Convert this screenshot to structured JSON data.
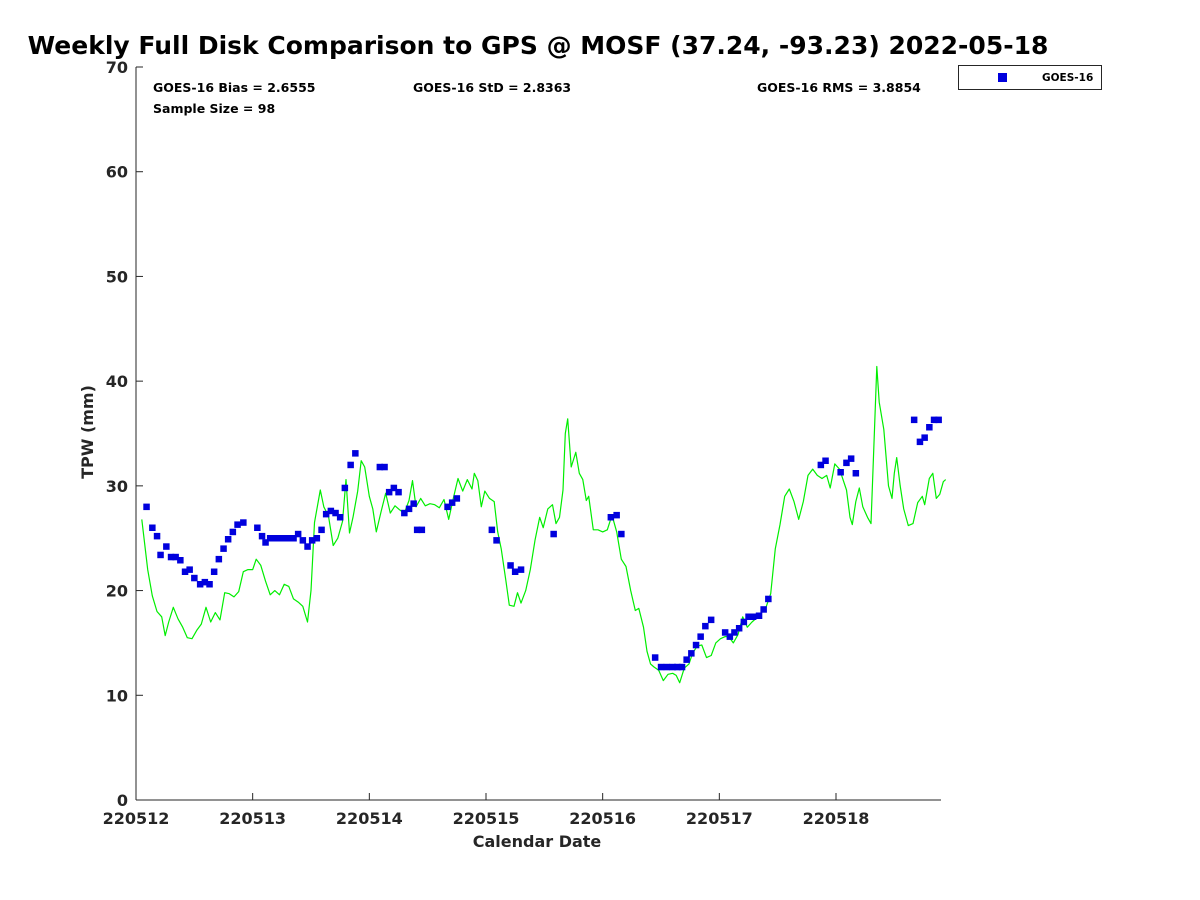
{
  "chart_data": {
    "type": "scatter",
    "title": "Weekly Full Disk Comparison to GPS @ MOSF (37.24, -93.23) 2022-05-18",
    "xlabel": "Calendar Date",
    "ylabel": "TPW (mm)",
    "xlim": [
      0,
      6.9
    ],
    "ylim": [
      0,
      70
    ],
    "x_ticks": [
      0,
      1,
      2,
      3,
      4,
      5,
      6
    ],
    "x_tick_labels": [
      "220512",
      "220513",
      "220514",
      "220515",
      "220516",
      "220517",
      "220518"
    ],
    "y_ticks": [
      0,
      10,
      20,
      30,
      40,
      50,
      60,
      70
    ],
    "y_tick_labels": [
      "0",
      "10",
      "20",
      "30",
      "40",
      "50",
      "60",
      "70"
    ],
    "legend": {
      "position": "top-right outside",
      "entries": [
        "GOES-16"
      ]
    },
    "stats": {
      "bias": "GOES-16 Bias = 2.6555",
      "std": "GOES-16 StD = 2.8363",
      "rms": "GOES-16 RMS = 3.8854",
      "sample_size": "Sample Size = 98"
    },
    "series": [
      {
        "name": "GOES-16",
        "kind": "scatter",
        "color": "#0000dd",
        "points": [
          [
            0.09,
            28.0
          ],
          [
            0.14,
            26.0
          ],
          [
            0.18,
            25.2
          ],
          [
            0.21,
            23.4
          ],
          [
            0.26,
            24.2
          ],
          [
            0.3,
            23.2
          ],
          [
            0.34,
            23.2
          ],
          [
            0.38,
            22.9
          ],
          [
            0.42,
            21.8
          ],
          [
            0.46,
            22.0
          ],
          [
            0.5,
            21.2
          ],
          [
            0.55,
            20.6
          ],
          [
            0.59,
            20.8
          ],
          [
            0.63,
            20.6
          ],
          [
            0.67,
            21.8
          ],
          [
            0.71,
            23.0
          ],
          [
            0.75,
            24.0
          ],
          [
            0.79,
            24.9
          ],
          [
            0.83,
            25.6
          ],
          [
            0.87,
            26.3
          ],
          [
            0.92,
            26.5
          ],
          [
            1.04,
            26.0
          ],
          [
            1.08,
            25.2
          ],
          [
            1.11,
            24.6
          ],
          [
            1.15,
            25.0
          ],
          [
            1.19,
            25.0
          ],
          [
            1.23,
            25.0
          ],
          [
            1.27,
            25.0
          ],
          [
            1.31,
            25.0
          ],
          [
            1.35,
            25.0
          ],
          [
            1.39,
            25.4
          ],
          [
            1.43,
            24.8
          ],
          [
            1.47,
            24.2
          ],
          [
            1.51,
            24.8
          ],
          [
            1.55,
            25.0
          ],
          [
            1.59,
            25.8
          ],
          [
            1.63,
            27.3
          ],
          [
            1.67,
            27.6
          ],
          [
            1.71,
            27.4
          ],
          [
            1.75,
            27.0
          ],
          [
            1.79,
            29.8
          ],
          [
            1.84,
            32.0
          ],
          [
            1.88,
            33.1
          ],
          [
            2.09,
            31.8
          ],
          [
            2.13,
            31.8
          ],
          [
            2.17,
            29.4
          ],
          [
            2.21,
            29.8
          ],
          [
            2.25,
            29.4
          ],
          [
            2.3,
            27.4
          ],
          [
            2.34,
            27.8
          ],
          [
            2.38,
            28.3
          ],
          [
            2.41,
            25.8
          ],
          [
            2.45,
            25.8
          ],
          [
            2.67,
            28.0
          ],
          [
            2.71,
            28.4
          ],
          [
            2.75,
            28.8
          ],
          [
            3.05,
            25.8
          ],
          [
            3.09,
            24.8
          ],
          [
            3.21,
            22.4
          ],
          [
            3.25,
            21.8
          ],
          [
            3.3,
            22.0
          ],
          [
            3.58,
            25.4
          ],
          [
            4.07,
            27.0
          ],
          [
            4.12,
            27.2
          ],
          [
            4.16,
            25.4
          ],
          [
            4.45,
            13.6
          ],
          [
            4.5,
            12.7
          ],
          [
            4.55,
            12.7
          ],
          [
            4.6,
            12.7
          ],
          [
            4.64,
            12.7
          ],
          [
            4.68,
            12.7
          ],
          [
            4.72,
            13.4
          ],
          [
            4.76,
            14.0
          ],
          [
            4.8,
            14.8
          ],
          [
            4.84,
            15.6
          ],
          [
            4.88,
            16.6
          ],
          [
            4.93,
            17.2
          ],
          [
            5.05,
            16.0
          ],
          [
            5.09,
            15.6
          ],
          [
            5.13,
            16.0
          ],
          [
            5.17,
            16.4
          ],
          [
            5.21,
            17.0
          ],
          [
            5.25,
            17.5
          ],
          [
            5.29,
            17.5
          ],
          [
            5.34,
            17.6
          ],
          [
            5.38,
            18.2
          ],
          [
            5.42,
            19.2
          ],
          [
            5.87,
            32.0
          ],
          [
            5.91,
            32.4
          ],
          [
            6.04,
            31.3
          ],
          [
            6.09,
            32.2
          ],
          [
            6.13,
            32.6
          ],
          [
            6.17,
            31.2
          ],
          [
            6.67,
            36.3
          ],
          [
            6.72,
            34.2
          ],
          [
            6.76,
            34.6
          ],
          [
            6.8,
            35.6
          ],
          [
            6.84,
            36.3
          ],
          [
            6.88,
            36.3
          ]
        ]
      },
      {
        "name": "GPS",
        "kind": "line",
        "color": "#00ee00",
        "points": [
          [
            0.05,
            26.8
          ],
          [
            0.1,
            22.0
          ],
          [
            0.14,
            19.5
          ],
          [
            0.18,
            18.0
          ],
          [
            0.22,
            17.5
          ],
          [
            0.25,
            15.7
          ],
          [
            0.28,
            17.0
          ],
          [
            0.32,
            18.4
          ],
          [
            0.36,
            17.3
          ],
          [
            0.4,
            16.5
          ],
          [
            0.44,
            15.5
          ],
          [
            0.48,
            15.4
          ],
          [
            0.52,
            16.2
          ],
          [
            0.56,
            16.8
          ],
          [
            0.6,
            18.4
          ],
          [
            0.64,
            17.0
          ],
          [
            0.68,
            17.9
          ],
          [
            0.72,
            17.2
          ],
          [
            0.76,
            19.8
          ],
          [
            0.8,
            19.7
          ],
          [
            0.84,
            19.4
          ],
          [
            0.88,
            19.9
          ],
          [
            0.92,
            21.8
          ],
          [
            0.96,
            22.0
          ],
          [
            1.0,
            22.0
          ],
          [
            1.03,
            23.0
          ],
          [
            1.07,
            22.4
          ],
          [
            1.11,
            20.9
          ],
          [
            1.15,
            19.6
          ],
          [
            1.19,
            20.0
          ],
          [
            1.23,
            19.6
          ],
          [
            1.27,
            20.6
          ],
          [
            1.31,
            20.4
          ],
          [
            1.35,
            19.2
          ],
          [
            1.39,
            18.9
          ],
          [
            1.43,
            18.5
          ],
          [
            1.47,
            17.0
          ],
          [
            1.5,
            20.0
          ],
          [
            1.53,
            26.5
          ],
          [
            1.58,
            29.6
          ],
          [
            1.61,
            28.0
          ],
          [
            1.65,
            27.1
          ],
          [
            1.69,
            24.3
          ],
          [
            1.73,
            25.0
          ],
          [
            1.77,
            26.6
          ],
          [
            1.8,
            30.6
          ],
          [
            1.83,
            25.5
          ],
          [
            1.86,
            27.0
          ],
          [
            1.9,
            29.5
          ],
          [
            1.93,
            32.4
          ],
          [
            1.96,
            31.8
          ],
          [
            2.0,
            29.0
          ],
          [
            2.03,
            27.8
          ],
          [
            2.06,
            25.6
          ],
          [
            2.1,
            27.5
          ],
          [
            2.14,
            29.3
          ],
          [
            2.18,
            27.4
          ],
          [
            2.22,
            28.1
          ],
          [
            2.26,
            27.7
          ],
          [
            2.3,
            27.4
          ],
          [
            2.34,
            28.6
          ],
          [
            2.37,
            30.5
          ],
          [
            2.4,
            28.0
          ],
          [
            2.44,
            28.8
          ],
          [
            2.48,
            28.1
          ],
          [
            2.52,
            28.3
          ],
          [
            2.56,
            28.2
          ],
          [
            2.6,
            27.9
          ],
          [
            2.64,
            28.7
          ],
          [
            2.68,
            26.8
          ],
          [
            2.72,
            28.8
          ],
          [
            2.76,
            30.7
          ],
          [
            2.8,
            29.5
          ],
          [
            2.84,
            30.6
          ],
          [
            2.88,
            29.7
          ],
          [
            2.9,
            31.2
          ],
          [
            2.93,
            30.5
          ],
          [
            2.96,
            28.0
          ],
          [
            2.99,
            29.5
          ],
          [
            3.03,
            28.8
          ],
          [
            3.07,
            28.5
          ],
          [
            3.1,
            25.6
          ],
          [
            3.13,
            24.0
          ],
          [
            3.17,
            21.0
          ],
          [
            3.2,
            18.6
          ],
          [
            3.24,
            18.5
          ],
          [
            3.27,
            19.8
          ],
          [
            3.3,
            18.8
          ],
          [
            3.34,
            20.0
          ],
          [
            3.38,
            22.0
          ],
          [
            3.42,
            24.8
          ],
          [
            3.46,
            27.0
          ],
          [
            3.49,
            26.0
          ],
          [
            3.53,
            27.8
          ],
          [
            3.57,
            28.2
          ],
          [
            3.6,
            26.4
          ],
          [
            3.63,
            27.0
          ],
          [
            3.66,
            29.6
          ],
          [
            3.68,
            35.0
          ],
          [
            3.7,
            36.4
          ],
          [
            3.73,
            31.8
          ],
          [
            3.77,
            33.2
          ],
          [
            3.8,
            31.2
          ],
          [
            3.83,
            30.6
          ],
          [
            3.86,
            28.6
          ],
          [
            3.88,
            29.0
          ],
          [
            3.92,
            25.8
          ],
          [
            3.96,
            25.8
          ],
          [
            4.0,
            25.6
          ],
          [
            4.04,
            25.8
          ],
          [
            4.08,
            27.2
          ],
          [
            4.12,
            25.6
          ],
          [
            4.16,
            23.0
          ],
          [
            4.2,
            22.3
          ],
          [
            4.24,
            20.0
          ],
          [
            4.28,
            18.1
          ],
          [
            4.31,
            18.3
          ],
          [
            4.35,
            16.5
          ],
          [
            4.38,
            14.2
          ],
          [
            4.41,
            13.0
          ],
          [
            4.44,
            12.7
          ],
          [
            4.48,
            12.4
          ],
          [
            4.52,
            11.4
          ],
          [
            4.56,
            12.0
          ],
          [
            4.6,
            12.1
          ],
          [
            4.63,
            11.9
          ],
          [
            4.66,
            11.2
          ],
          [
            4.7,
            12.6
          ],
          [
            4.74,
            13.0
          ],
          [
            4.77,
            14.0
          ],
          [
            4.81,
            14.7
          ],
          [
            4.85,
            14.8
          ],
          [
            4.89,
            13.6
          ],
          [
            4.93,
            13.8
          ],
          [
            4.97,
            15.0
          ],
          [
            5.01,
            15.4
          ],
          [
            5.05,
            15.6
          ],
          [
            5.08,
            15.6
          ],
          [
            5.12,
            15.0
          ],
          [
            5.16,
            15.8
          ],
          [
            5.2,
            17.5
          ],
          [
            5.24,
            16.5
          ],
          [
            5.28,
            17.0
          ],
          [
            5.32,
            17.4
          ],
          [
            5.36,
            17.9
          ],
          [
            5.4,
            18.4
          ],
          [
            5.44,
            19.7
          ],
          [
            5.48,
            24.0
          ],
          [
            5.52,
            26.3
          ],
          [
            5.56,
            29.0
          ],
          [
            5.6,
            29.7
          ],
          [
            5.64,
            28.5
          ],
          [
            5.68,
            26.8
          ],
          [
            5.72,
            28.5
          ],
          [
            5.76,
            31.0
          ],
          [
            5.8,
            31.6
          ],
          [
            5.84,
            31.0
          ],
          [
            5.88,
            30.7
          ],
          [
            5.92,
            31.0
          ],
          [
            5.95,
            29.8
          ],
          [
            5.99,
            32.1
          ],
          [
            6.03,
            31.6
          ],
          [
            6.06,
            30.6
          ],
          [
            6.09,
            29.6
          ],
          [
            6.12,
            27.0
          ],
          [
            6.14,
            26.3
          ],
          [
            6.17,
            28.5
          ],
          [
            6.2,
            29.8
          ],
          [
            6.23,
            28.0
          ],
          [
            6.27,
            27.0
          ],
          [
            6.3,
            26.4
          ],
          [
            6.33,
            35.4
          ],
          [
            6.35,
            41.4
          ],
          [
            6.37,
            38.0
          ],
          [
            6.41,
            35.4
          ],
          [
            6.45,
            30.0
          ],
          [
            6.48,
            28.8
          ],
          [
            6.5,
            31.2
          ],
          [
            6.52,
            32.7
          ],
          [
            6.55,
            30.0
          ],
          [
            6.58,
            27.8
          ],
          [
            6.62,
            26.2
          ],
          [
            6.66,
            26.4
          ],
          [
            6.7,
            28.4
          ],
          [
            6.74,
            29.0
          ],
          [
            6.76,
            28.2
          ],
          [
            6.8,
            30.7
          ],
          [
            6.83,
            31.2
          ],
          [
            6.86,
            28.8
          ],
          [
            6.89,
            29.2
          ],
          [
            6.92,
            30.4
          ],
          [
            6.94,
            30.6
          ]
        ]
      }
    ]
  }
}
